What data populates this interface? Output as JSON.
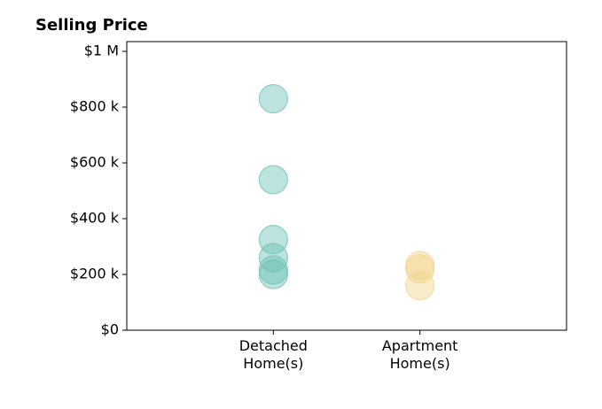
{
  "chart_data": {
    "type": "strip",
    "title": "Selling Price",
    "categories": [
      "Detached Home(s)",
      "Apartment Home(s)"
    ],
    "values": [
      [
        830000,
        540000,
        325000,
        260000,
        216000,
        200000
      ],
      [
        232000,
        220000,
        160000
      ]
    ],
    "colors": [
      "#6cc0b6",
      "#f2d58c"
    ],
    "alpha": 0.45,
    "xlim": [
      -1,
      2
    ],
    "ylim": [
      0,
      1035000
    ],
    "yticks": [
      {
        "value": 0,
        "label": "$0"
      },
      {
        "value": 200000,
        "label": "$200 k"
      },
      {
        "value": 400000,
        "label": "$400 k"
      },
      {
        "value": 600000,
        "label": "$600 k"
      },
      {
        "value": 800000,
        "label": "$800 k"
      },
      {
        "value": 1000000,
        "label": "$1 M"
      }
    ],
    "grid": false
  }
}
